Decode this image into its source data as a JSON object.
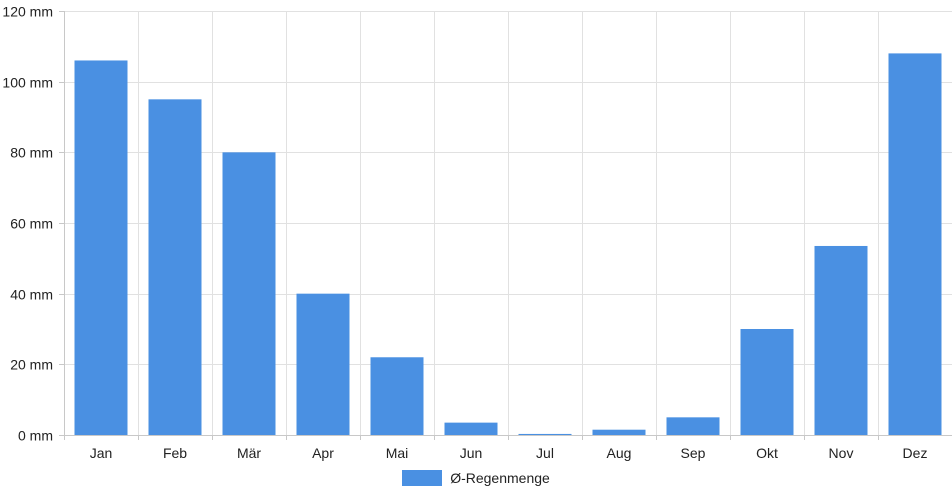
{
  "chart_data": {
    "type": "bar",
    "categories": [
      "Jan",
      "Feb",
      "Mär",
      "Apr",
      "Mai",
      "Jun",
      "Jul",
      "Aug",
      "Sep",
      "Okt",
      "Nov",
      "Dez"
    ],
    "series": [
      {
        "name": "Ø-Regenmenge",
        "values": [
          106,
          95,
          80,
          40,
          22,
          3.5,
          0.3,
          1.5,
          5,
          30,
          53.5,
          108
        ],
        "color": "#4a90e2"
      }
    ],
    "ylim": [
      0,
      120
    ],
    "yticks": [
      0,
      20,
      40,
      60,
      80,
      100,
      120
    ],
    "ytick_labels": [
      "0 mm",
      "20 mm",
      "40 mm",
      "60 mm",
      "80 mm",
      "100 mm",
      "120 mm"
    ],
    "grid": true,
    "legend_position": "bottom-center"
  }
}
